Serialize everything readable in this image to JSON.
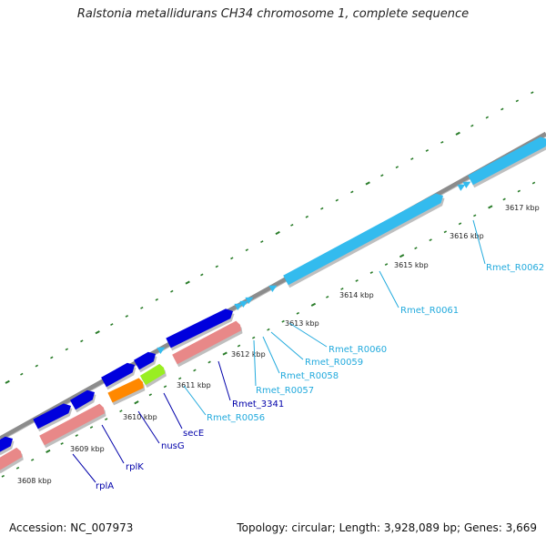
{
  "title": "Ralstonia metallidurans CH34 chromosome 1, complete sequence",
  "footer": {
    "accession": "Accession: NC_007973",
    "summary": "Topology: circular; Length: 3,928,089 bp; Genes: 3,669"
  },
  "colors": {
    "backbone": "#8c8c8c",
    "tick": "#2a7d2a",
    "cds": "#0000dd",
    "rrna": "#33bbee",
    "trna": "#33bbee",
    "pseudo": "#e88888",
    "orange": "#ff8800",
    "green": "#99ee22",
    "label_dark": "#0000aa",
    "label_light": "#22aadd"
  },
  "kbp_labels": [
    "3608 kbp",
    "3609 kbp",
    "3610 kbp",
    "3611 kbp",
    "3612 kbp",
    "3613 kbp",
    "3614 kbp",
    "3615 kbp",
    "3616 kbp",
    "3617 kbp"
  ],
  "gene_labels": [
    {
      "name": "rplA",
      "kind": "dark"
    },
    {
      "name": "rplK",
      "kind": "dark"
    },
    {
      "name": "nusG",
      "kind": "dark"
    },
    {
      "name": "secE",
      "kind": "dark"
    },
    {
      "name": "Rmet_R0056",
      "kind": "light"
    },
    {
      "name": "Rmet_3341",
      "kind": "dark"
    },
    {
      "name": "Rmet_R0057",
      "kind": "light"
    },
    {
      "name": "Rmet_R0058",
      "kind": "light"
    },
    {
      "name": "Rmet_R0059",
      "kind": "light"
    },
    {
      "name": "Rmet_R0060",
      "kind": "light"
    },
    {
      "name": "Rmet_R0061",
      "kind": "light"
    },
    {
      "name": "Rmet_R0062",
      "kind": "light"
    }
  ]
}
